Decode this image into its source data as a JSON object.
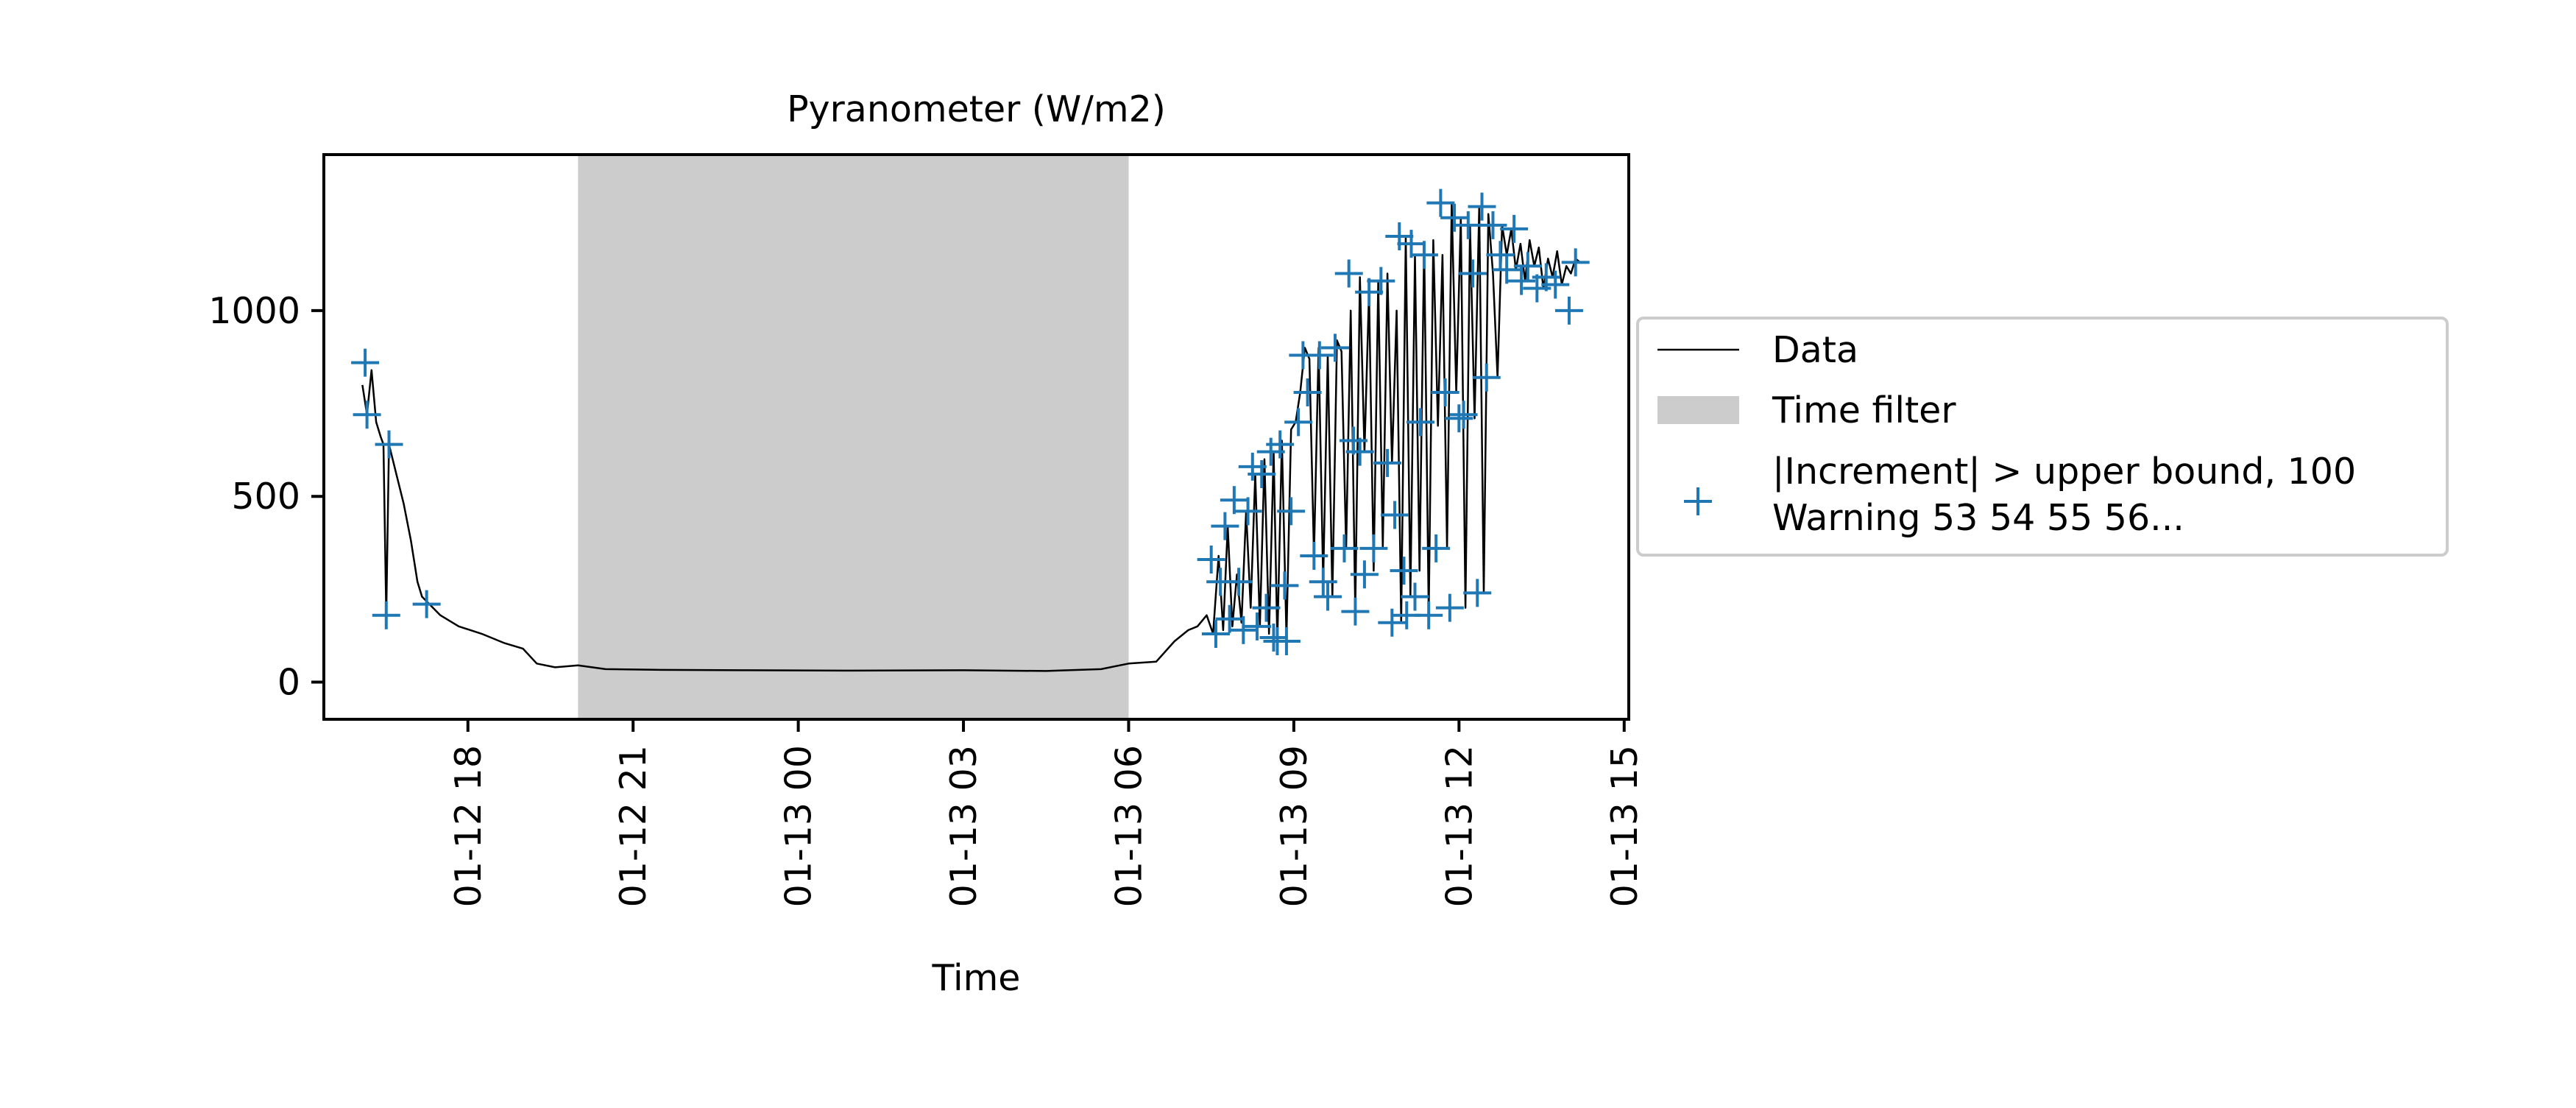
{
  "chart_data": {
    "type": "line",
    "title": "Pyranometer (W/m2)",
    "xlabel": "Time",
    "ylabel": "",
    "x_axis": {
      "kind": "datetime",
      "ticks": [
        "01-12 18",
        "01-12 21",
        "01-13 00",
        "01-13 03",
        "01-13 06",
        "01-13 09",
        "01-13 12",
        "01-13 15"
      ],
      "xlim": [
        "2024-01-12T15:23",
        "2024-01-13T15:05"
      ]
    },
    "y_axis": {
      "ticks": [
        0,
        500,
        1000
      ],
      "ylim": [
        -100,
        1420
      ]
    },
    "grid": false,
    "legend": {
      "placement": "outside-right",
      "entries": [
        {
          "label": "Data",
          "kind": "line",
          "color": "#000000"
        },
        {
          "label": "Time filter",
          "kind": "patch",
          "color": "#cccccc"
        },
        {
          "label": "|Increment| > upper bound, 100\nWarning 53 54 55 56...",
          "kind": "marker",
          "color": "#1f77b4"
        }
      ]
    },
    "time_filter": {
      "start": "2024-01-12T20:00",
      "end": "2024-01-13T06:00"
    },
    "series": [
      {
        "name": "Data",
        "color": "#000000",
        "points": [
          [
            "2024-01-12T16:05",
            800
          ],
          [
            "2024-01-12T16:10",
            720
          ],
          [
            "2024-01-12T16:15",
            840
          ],
          [
            "2024-01-12T16:20",
            700
          ],
          [
            "2024-01-12T16:25",
            660
          ],
          [
            "2024-01-12T16:28",
            640
          ],
          [
            "2024-01-12T16:31",
            180
          ],
          [
            "2024-01-12T16:34",
            640
          ],
          [
            "2024-01-12T16:42",
            560
          ],
          [
            "2024-01-12T16:50",
            480
          ],
          [
            "2024-01-12T16:58",
            380
          ],
          [
            "2024-01-12T17:05",
            270
          ],
          [
            "2024-01-12T17:10",
            230
          ],
          [
            "2024-01-12T17:18",
            210
          ],
          [
            "2024-01-12T17:30",
            180
          ],
          [
            "2024-01-12T17:50",
            150
          ],
          [
            "2024-01-12T18:15",
            130
          ],
          [
            "2024-01-12T18:40",
            105
          ],
          [
            "2024-01-12T19:00",
            90
          ],
          [
            "2024-01-12T19:15",
            50
          ],
          [
            "2024-01-12T19:35",
            40
          ],
          [
            "2024-01-12T20:00",
            45
          ],
          [
            "2024-01-12T20:30",
            35
          ],
          [
            "2024-01-12T21:30",
            33
          ],
          [
            "2024-01-12T23:00",
            32
          ],
          [
            "2024-01-13T01:00",
            31
          ],
          [
            "2024-01-13T03:00",
            32
          ],
          [
            "2024-01-13T04:30",
            30
          ],
          [
            "2024-01-13T05:30",
            35
          ],
          [
            "2024-01-13T06:00",
            50
          ],
          [
            "2024-01-13T06:30",
            55
          ],
          [
            "2024-01-13T06:50",
            110
          ],
          [
            "2024-01-13T07:05",
            140
          ],
          [
            "2024-01-13T07:15",
            150
          ],
          [
            "2024-01-13T07:25",
            180
          ],
          [
            "2024-01-13T07:32",
            130
          ],
          [
            "2024-01-13T07:38",
            340
          ],
          [
            "2024-01-13T07:43",
            140
          ],
          [
            "2024-01-13T07:48",
            420
          ],
          [
            "2024-01-13T07:53",
            150
          ],
          [
            "2024-01-13T07:58",
            290
          ],
          [
            "2024-01-13T08:03",
            160
          ],
          [
            "2024-01-13T08:08",
            460
          ],
          [
            "2024-01-13T08:13",
            200
          ],
          [
            "2024-01-13T08:18",
            560
          ],
          [
            "2024-01-13T08:23",
            150
          ],
          [
            "2024-01-13T08:28",
            600
          ],
          [
            "2024-01-13T08:33",
            130
          ],
          [
            "2024-01-13T08:38",
            620
          ],
          [
            "2024-01-13T08:42",
            110
          ],
          [
            "2024-01-13T08:47",
            650
          ],
          [
            "2024-01-13T08:52",
            120
          ],
          [
            "2024-01-13T08:57",
            680
          ],
          [
            "2024-01-13T09:02",
            700
          ],
          [
            "2024-01-13T09:07",
            780
          ],
          [
            "2024-01-13T09:12",
            900
          ],
          [
            "2024-01-13T09:17",
            870
          ],
          [
            "2024-01-13T09:22",
            340
          ],
          [
            "2024-01-13T09:27",
            900
          ],
          [
            "2024-01-13T09:32",
            270
          ],
          [
            "2024-01-13T09:37",
            880
          ],
          [
            "2024-01-13T09:42",
            230
          ],
          [
            "2024-01-13T09:47",
            920
          ],
          [
            "2024-01-13T09:52",
            890
          ],
          [
            "2024-01-13T09:57",
            360
          ],
          [
            "2024-01-13T10:02",
            1000
          ],
          [
            "2024-01-13T10:07",
            190
          ],
          [
            "2024-01-13T10:12",
            1090
          ],
          [
            "2024-01-13T10:17",
            620
          ],
          [
            "2024-01-13T10:22",
            1050
          ],
          [
            "2024-01-13T10:27",
            300
          ],
          [
            "2024-01-13T10:32",
            1080
          ],
          [
            "2024-01-13T10:37",
            360
          ],
          [
            "2024-01-13T10:42",
            1100
          ],
          [
            "2024-01-13T10:47",
            590
          ],
          [
            "2024-01-13T10:52",
            1000
          ],
          [
            "2024-01-13T10:57",
            160
          ],
          [
            "2024-01-13T11:02",
            1200
          ],
          [
            "2024-01-13T11:07",
            230
          ],
          [
            "2024-01-13T11:12",
            1150
          ],
          [
            "2024-01-13T11:17",
            300
          ],
          [
            "2024-01-13T11:22",
            1180
          ],
          [
            "2024-01-13T11:27",
            180
          ],
          [
            "2024-01-13T11:32",
            1190
          ],
          [
            "2024-01-13T11:37",
            690
          ],
          [
            "2024-01-13T11:42",
            1150
          ],
          [
            "2024-01-13T11:47",
            360
          ],
          [
            "2024-01-13T11:52",
            1290
          ],
          [
            "2024-01-13T11:57",
            780
          ],
          [
            "2024-01-13T12:02",
            1250
          ],
          [
            "2024-01-13T12:07",
            200
          ],
          [
            "2024-01-13T12:12",
            1230
          ],
          [
            "2024-01-13T12:17",
            710
          ],
          [
            "2024-01-13T12:22",
            1280
          ],
          [
            "2024-01-13T12:27",
            240
          ],
          [
            "2024-01-13T12:32",
            1260
          ],
          [
            "2024-01-13T12:37",
            1100
          ],
          [
            "2024-01-13T12:42",
            820
          ],
          [
            "2024-01-13T12:47",
            1230
          ],
          [
            "2024-01-13T12:52",
            1150
          ],
          [
            "2024-01-13T12:57",
            1220
          ],
          [
            "2024-01-13T13:02",
            1110
          ],
          [
            "2024-01-13T13:07",
            1180
          ],
          [
            "2024-01-13T13:12",
            1080
          ],
          [
            "2024-01-13T13:17",
            1190
          ],
          [
            "2024-01-13T13:22",
            1120
          ],
          [
            "2024-01-13T13:27",
            1170
          ],
          [
            "2024-01-13T13:32",
            1060
          ],
          [
            "2024-01-13T13:37",
            1140
          ],
          [
            "2024-01-13T13:42",
            1090
          ],
          [
            "2024-01-13T13:47",
            1160
          ],
          [
            "2024-01-13T13:52",
            1070
          ],
          [
            "2024-01-13T13:57",
            1120
          ],
          [
            "2024-01-13T14:02",
            1100
          ],
          [
            "2024-01-13T14:07",
            1140
          ],
          [
            "2024-01-13T14:12",
            1130
          ]
        ]
      },
      {
        "name": "|Increment| > upper bound, 100\nWarning 53 54 55 56...",
        "color": "#1f77b4",
        "marker": "plus",
        "points": [
          [
            "2024-01-12T16:08",
            860
          ],
          [
            "2024-01-12T16:10",
            720
          ],
          [
            "2024-01-12T16:31",
            180
          ],
          [
            "2024-01-12T16:34",
            640
          ],
          [
            "2024-01-12T17:15",
            210
          ],
          [
            "2024-01-13T07:30",
            330
          ],
          [
            "2024-01-13T07:35",
            130
          ],
          [
            "2024-01-13T07:40",
            270
          ],
          [
            "2024-01-13T07:45",
            420
          ],
          [
            "2024-01-13T07:50",
            170
          ],
          [
            "2024-01-13T07:55",
            490
          ],
          [
            "2024-01-13T08:00",
            270
          ],
          [
            "2024-01-13T08:05",
            140
          ],
          [
            "2024-01-13T08:10",
            460
          ],
          [
            "2024-01-13T08:15",
            580
          ],
          [
            "2024-01-13T08:20",
            150
          ],
          [
            "2024-01-13T08:25",
            560
          ],
          [
            "2024-01-13T08:30",
            200
          ],
          [
            "2024-01-13T08:35",
            620
          ],
          [
            "2024-01-13T08:38",
            120
          ],
          [
            "2024-01-13T08:42",
            110
          ],
          [
            "2024-01-13T08:45",
            640
          ],
          [
            "2024-01-13T08:50",
            260
          ],
          [
            "2024-01-13T08:52",
            110
          ],
          [
            "2024-01-13T08:57",
            460
          ],
          [
            "2024-01-13T09:05",
            700
          ],
          [
            "2024-01-13T09:10",
            880
          ],
          [
            "2024-01-13T09:15",
            780
          ],
          [
            "2024-01-13T09:22",
            340
          ],
          [
            "2024-01-13T09:28",
            880
          ],
          [
            "2024-01-13T09:32",
            270
          ],
          [
            "2024-01-13T09:37",
            230
          ],
          [
            "2024-01-13T09:45",
            900
          ],
          [
            "2024-01-13T09:55",
            360
          ],
          [
            "2024-01-13T10:00",
            1100
          ],
          [
            "2024-01-13T10:05",
            650
          ],
          [
            "2024-01-13T10:07",
            190
          ],
          [
            "2024-01-13T10:12",
            620
          ],
          [
            "2024-01-13T10:17",
            290
          ],
          [
            "2024-01-13T10:22",
            1050
          ],
          [
            "2024-01-13T10:27",
            360
          ],
          [
            "2024-01-13T10:35",
            1080
          ],
          [
            "2024-01-13T10:42",
            590
          ],
          [
            "2024-01-13T10:47",
            160
          ],
          [
            "2024-01-13T10:50",
            450
          ],
          [
            "2024-01-13T10:55",
            1200
          ],
          [
            "2024-01-13T11:00",
            300
          ],
          [
            "2024-01-13T11:03",
            180
          ],
          [
            "2024-01-13T11:08",
            1180
          ],
          [
            "2024-01-13T11:12",
            230
          ],
          [
            "2024-01-13T11:18",
            700
          ],
          [
            "2024-01-13T11:22",
            1150
          ],
          [
            "2024-01-13T11:27",
            180
          ],
          [
            "2024-01-13T11:35",
            360
          ],
          [
            "2024-01-13T11:40",
            1290
          ],
          [
            "2024-01-13T11:45",
            780
          ],
          [
            "2024-01-13T11:50",
            200
          ],
          [
            "2024-01-13T11:55",
            1250
          ],
          [
            "2024-01-13T12:00",
            710
          ],
          [
            "2024-01-13T12:05",
            720
          ],
          [
            "2024-01-13T12:10",
            1230
          ],
          [
            "2024-01-13T12:15",
            1100
          ],
          [
            "2024-01-13T12:20",
            240
          ],
          [
            "2024-01-13T12:25",
            1280
          ],
          [
            "2024-01-13T12:30",
            820
          ],
          [
            "2024-01-13T12:37",
            1230
          ],
          [
            "2024-01-13T12:45",
            1150
          ],
          [
            "2024-01-13T12:52",
            1110
          ],
          [
            "2024-01-13T13:00",
            1220
          ],
          [
            "2024-01-13T13:08",
            1080
          ],
          [
            "2024-01-13T13:15",
            1120
          ],
          [
            "2024-01-13T13:25",
            1060
          ],
          [
            "2024-01-13T13:35",
            1090
          ],
          [
            "2024-01-13T13:45",
            1070
          ],
          [
            "2024-01-13T14:00",
            1000
          ],
          [
            "2024-01-13T14:07",
            1130
          ]
        ]
      }
    ]
  }
}
